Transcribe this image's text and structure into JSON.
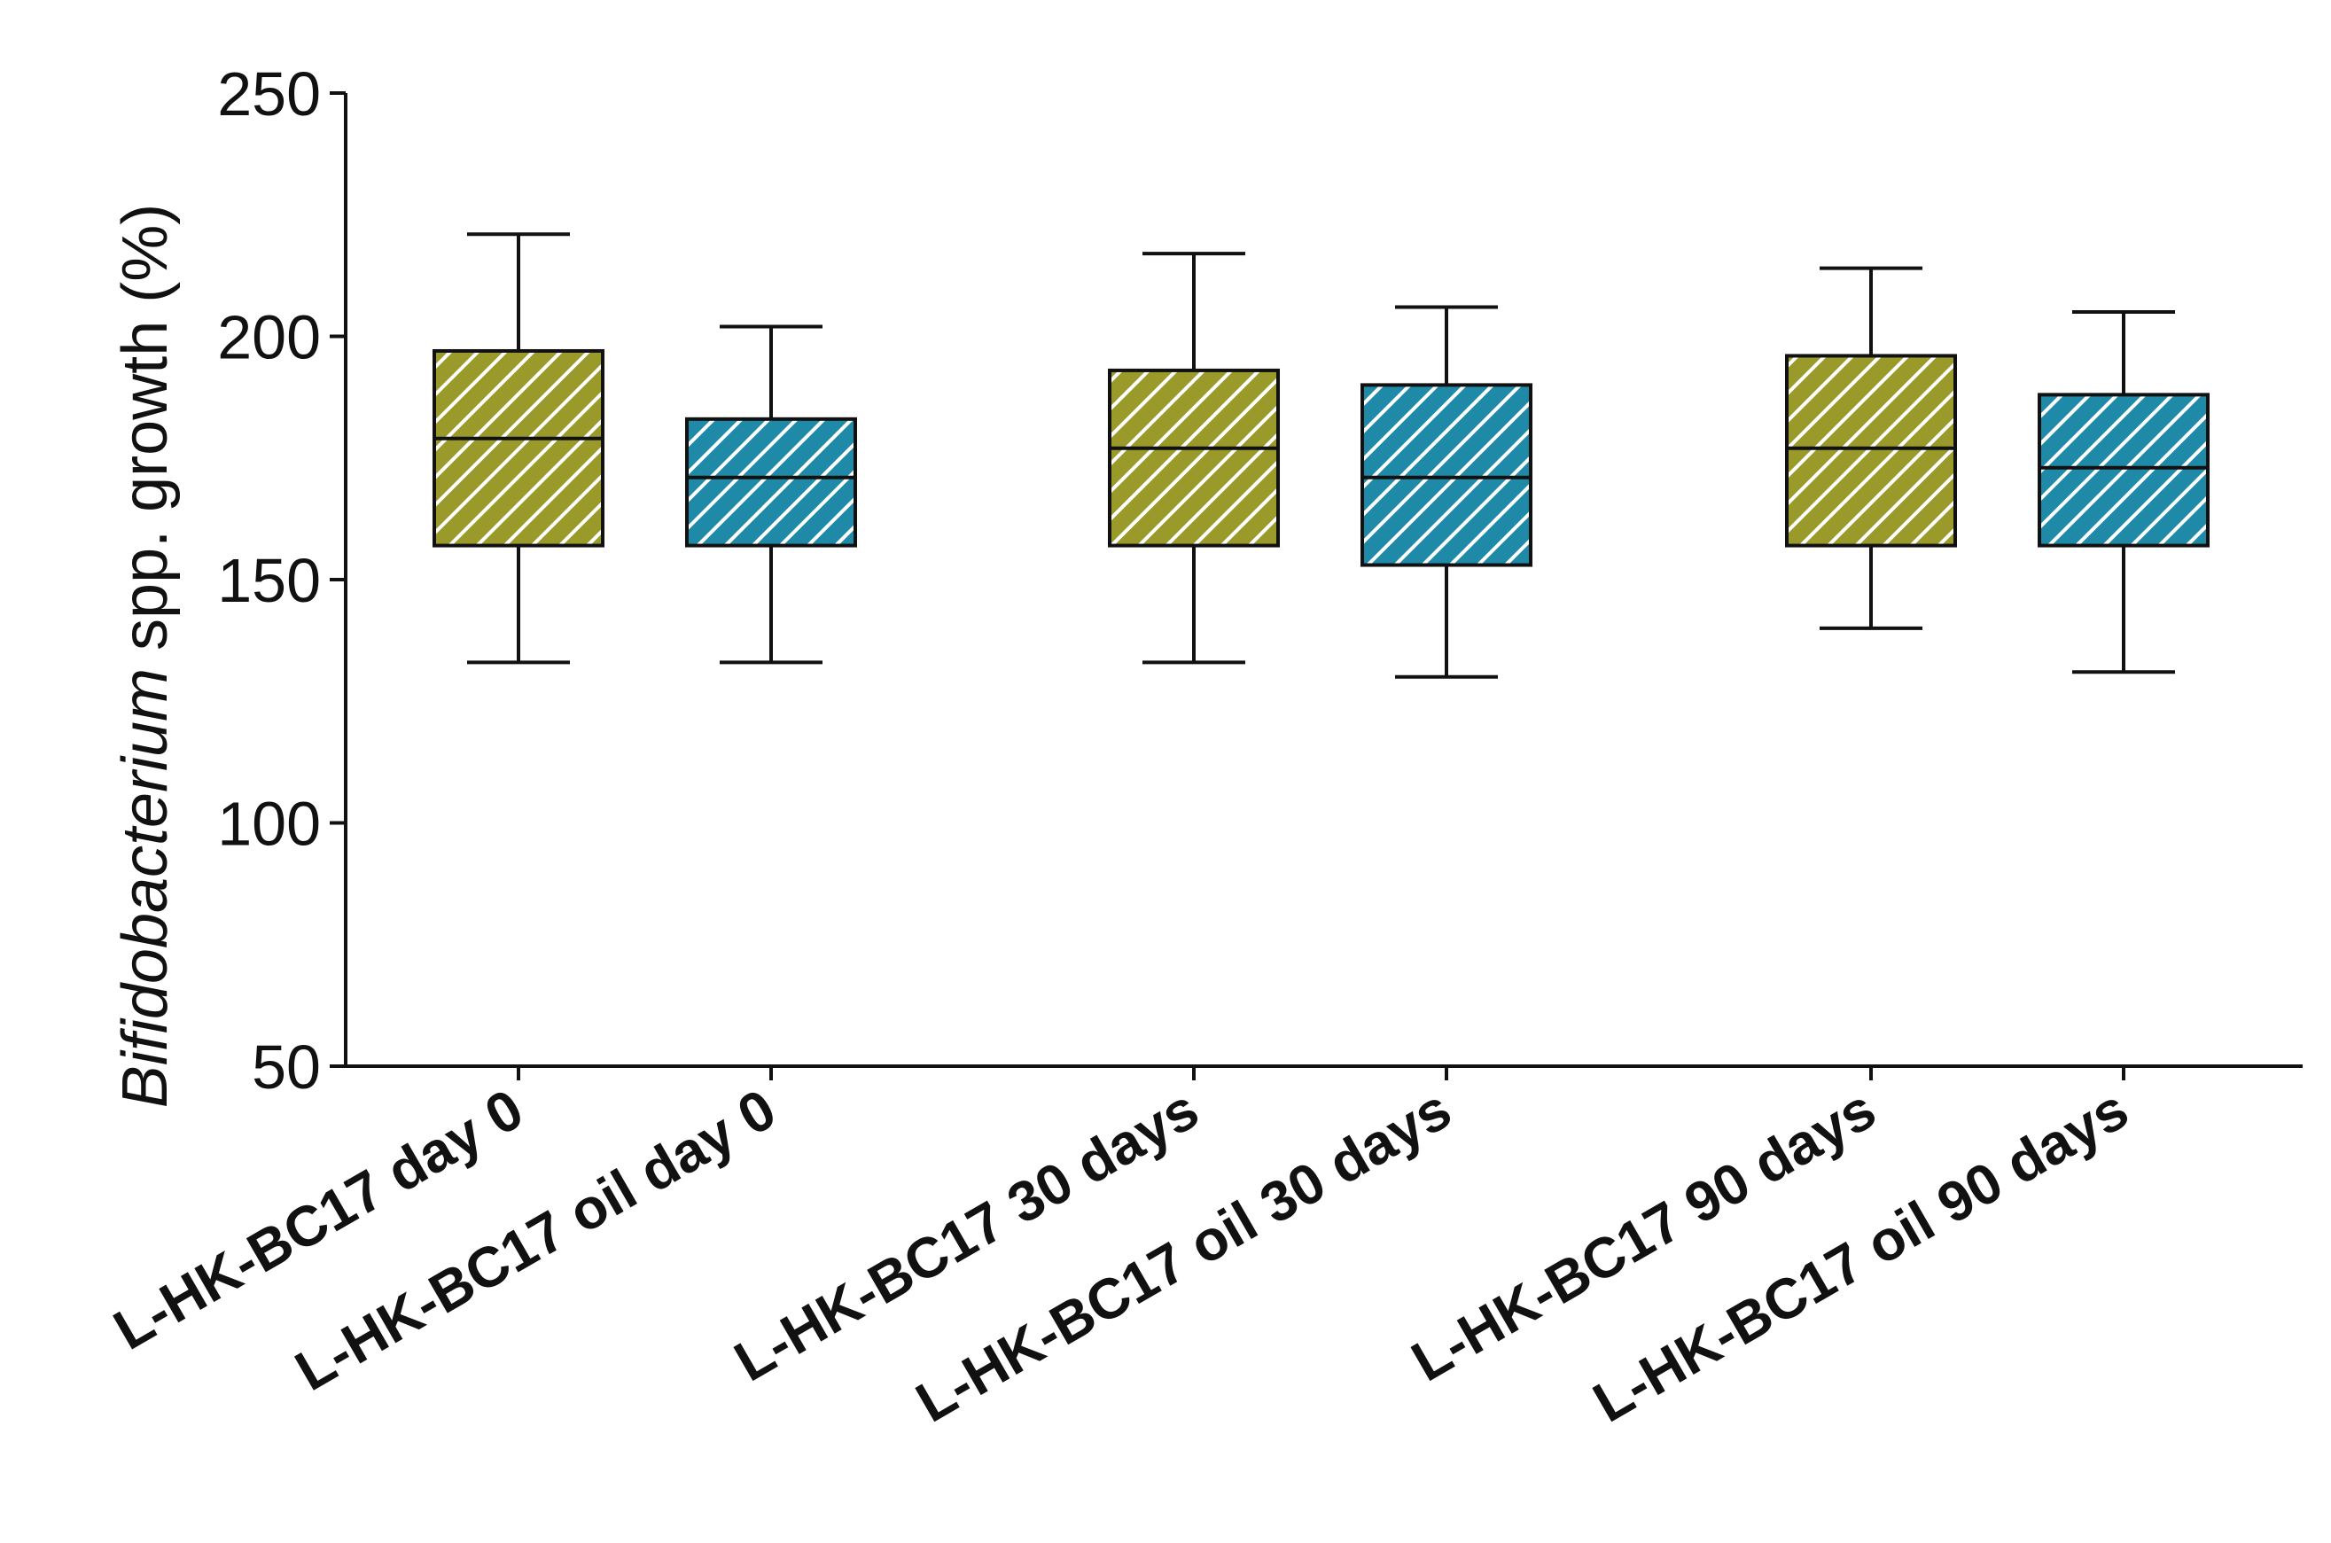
{
  "chart_data": {
    "type": "box",
    "ylabel": {
      "italic_part": "Bifidobacterium",
      "rest": " spp. growth (%)"
    },
    "ylim": [
      50,
      250
    ],
    "yticks": [
      50,
      100,
      150,
      200,
      250
    ],
    "ytick_labels": [
      "50",
      "100",
      "150",
      "200",
      "250"
    ],
    "grid": false,
    "legend": "none",
    "colors": {
      "olive": "#9a9a2a",
      "teal": "#1f8aa8",
      "hatch": "#ffffff",
      "line": "#111111"
    },
    "groups": [
      {
        "boxes": [
          {
            "label": "L-HK-BC17 day 0",
            "color": "olive",
            "min": 133,
            "q1": 157,
            "median": 179,
            "q3": 197,
            "max": 221
          },
          {
            "label": "L-HK-BC17 oil day 0",
            "color": "teal",
            "min": 133,
            "q1": 157,
            "median": 171,
            "q3": 183,
            "max": 202
          }
        ]
      },
      {
        "boxes": [
          {
            "label": "L-HK-BC17 30 days",
            "color": "olive",
            "min": 133,
            "q1": 157,
            "median": 177,
            "q3": 193,
            "max": 217
          },
          {
            "label": "L-HK-BC17 oil 30 days",
            "color": "teal",
            "min": 130,
            "q1": 153,
            "median": 171,
            "q3": 190,
            "max": 206
          }
        ]
      },
      {
        "boxes": [
          {
            "label": "L-HK-BC17 90 days",
            "color": "olive",
            "min": 140,
            "q1": 157,
            "median": 177,
            "q3": 196,
            "max": 214
          },
          {
            "label": "L-HK-BC17 oil 90 days",
            "color": "teal",
            "min": 131,
            "q1": 157,
            "median": 173,
            "q3": 188,
            "max": 205
          }
        ]
      }
    ]
  }
}
